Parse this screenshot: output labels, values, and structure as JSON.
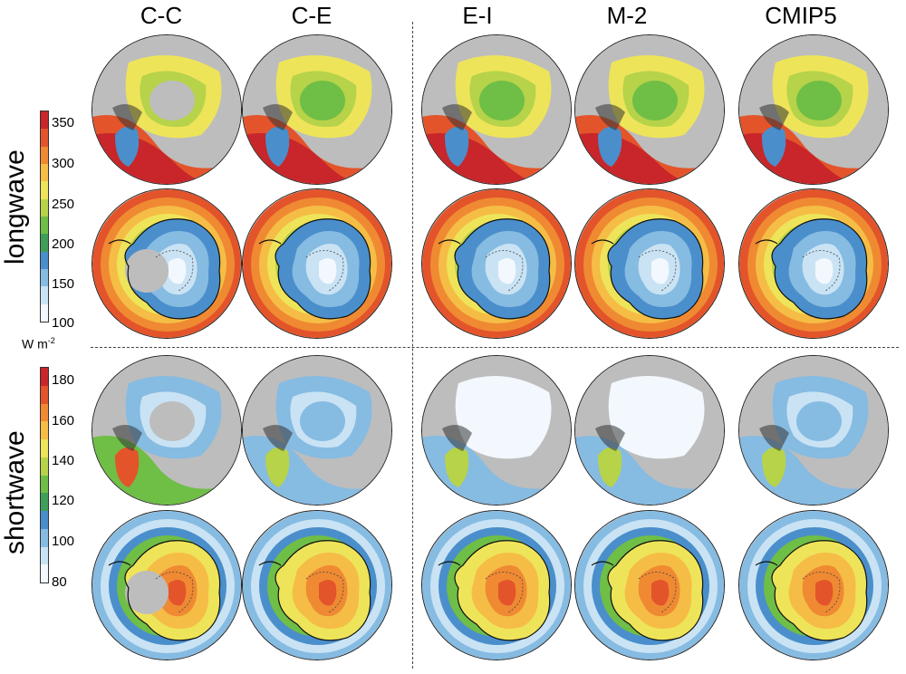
{
  "columns": [
    "C-C",
    "C-E",
    "E-I",
    "M-2",
    "CMIP5"
  ],
  "row_labels": {
    "longwave": "longwave",
    "shortwave": "shortwave"
  },
  "unit": {
    "base": "W m",
    "exp": "-2"
  },
  "longwave_ticks": [
    "350",
    "300",
    "250",
    "200",
    "150",
    "100"
  ],
  "shortwave_ticks": [
    "180",
    "160",
    "140",
    "120",
    "100",
    "80"
  ],
  "colormap": [
    "#f2f8fd",
    "#c9e3f4",
    "#86bbe2",
    "#4a8fcb",
    "#3f9e58",
    "#6fbe46",
    "#b6d34a",
    "#eee45a",
    "#f5bd46",
    "#ef8a32",
    "#e3542b",
    "#c8262a"
  ],
  "colors": {
    "land": "#bdbdbd",
    "outline": "#111111",
    "grid": "#555555"
  }
}
